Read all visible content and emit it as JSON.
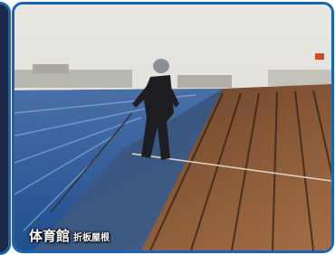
{
  "caption": {
    "title": "体育館",
    "subtitle": "折板屋根"
  }
}
